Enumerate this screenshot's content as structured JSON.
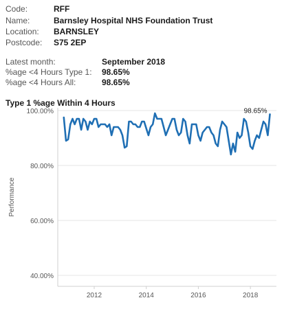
{
  "trust": {
    "code_label": "Code:",
    "code": "RFF",
    "name_label": "Name:",
    "name": "Barnsley Hospital NHS Foundation Trust",
    "location_label": "Location:",
    "location": "BARNSLEY",
    "postcode_label": "Postcode:",
    "postcode": "S75 2EP"
  },
  "summary": {
    "latest_month_label": "Latest month:",
    "latest_month": "September 2018",
    "type1_label": "%age <4 Hours Type 1:",
    "type1_value": "98.65%",
    "all_label": "%age <4 Hours All:",
    "all_value": "98.65%"
  },
  "chart_data": {
    "type": "line",
    "title": "Type 1 %age Within 4 Hours",
    "xlabel": "",
    "ylabel": "Performance",
    "ylim": [
      36,
      101
    ],
    "xlim": [
      2010.6,
      2019.0
    ],
    "yticks": [
      40,
      60,
      80,
      100
    ],
    "ytick_labels": [
      "40.00%",
      "60.00%",
      "80.00%",
      "100.00%"
    ],
    "xticks": [
      2012,
      2014,
      2016,
      2018
    ],
    "xtick_labels": [
      "2012",
      "2014",
      "2016",
      "2018"
    ],
    "grid": "horizontal",
    "line_color": "#1f6fb4",
    "end_label": "98.65%",
    "series": [
      {
        "start_year": 2010,
        "start_month": 11,
        "values": [
          97.5,
          89,
          89.5,
          95,
          97,
          95,
          97,
          97,
          93,
          97,
          96,
          93,
          96,
          95,
          97,
          97,
          94,
          95,
          95,
          95,
          94,
          95,
          91,
          94,
          94,
          94,
          93,
          91,
          86.5,
          87,
          96,
          96,
          95,
          95,
          94,
          94,
          96,
          96,
          93.5,
          91,
          94,
          95,
          99,
          97,
          97,
          97,
          94,
          91,
          93,
          95,
          97,
          97,
          93,
          91,
          92,
          97,
          96,
          91,
          88,
          95,
          95,
          95,
          91,
          89,
          92,
          93,
          94,
          94,
          92,
          91,
          88,
          87,
          93,
          96,
          95,
          94,
          89,
          84,
          88,
          85,
          92,
          90,
          91,
          97,
          96,
          92,
          87,
          86,
          89,
          91,
          90,
          93,
          96,
          95,
          91,
          98.65
        ]
      }
    ]
  }
}
